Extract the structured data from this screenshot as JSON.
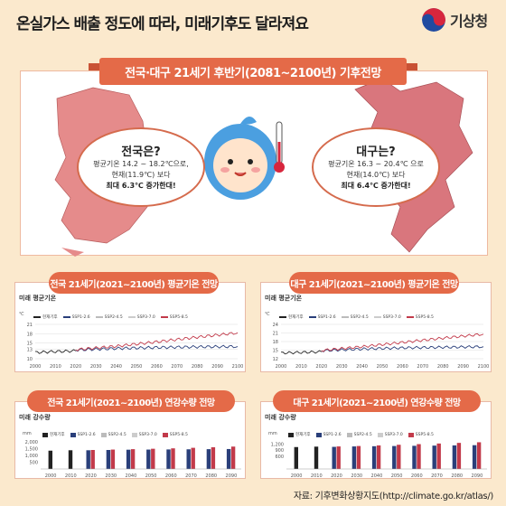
{
  "header": {
    "title": "온실가스 배출 정도에 따라, 미래기후도 달라져요",
    "logo_text": "기상청",
    "logo_icon": "taegeuk-icon"
  },
  "hero": {
    "ribbon": "전국·대구 21세기 후반기(2081~2100년) 기후전망",
    "national": {
      "title": "전국은?",
      "line1": "평균기온 14.2 ~ 18.2℃으로,",
      "line2": "현재(11.9℃) 보다",
      "line3": "최대 6.3℃ 증가한대!"
    },
    "daegu": {
      "title": "대구는?",
      "line1": "평균기온 16.3 ~ 20.4℃ 으로",
      "line2": "현재(14.0℃) 보다",
      "line3": "최대 6.4℃ 증가한대!"
    }
  },
  "panels": {
    "nat_temp": {
      "tag": "전국 21세기(2021~2100년) 평균기온 전망",
      "label": "미래 평균기온",
      "unit": "℃"
    },
    "dg_temp": {
      "tag": "대구 21세기(2021~2100년) 평균기온 전망",
      "label": "미래 평균기온",
      "unit": "℃"
    },
    "nat_rain": {
      "tag": "전국 21세기(2021~2100년) 연강수량 전망",
      "label": "미래 강수량",
      "unit": "mm"
    },
    "dg_rain": {
      "tag": "대구 21세기(2021~2100년) 연강수량 전망",
      "label": "미래 강수량",
      "unit": "mm"
    }
  },
  "legend": {
    "items": [
      "현재기후",
      "SSP1-2.6",
      "SSP2-4.5",
      "SSP3-7.0",
      "SSP5-8.5"
    ],
    "colors": [
      "#222222",
      "#2a3f7a",
      "#bbbbbb",
      "#cccccc",
      "#c23a4a"
    ]
  },
  "chart_data": [
    {
      "type": "line",
      "title": "전국 21세기(2021~2100년) 평균기온 전망",
      "x_ticks": [
        "2000",
        "2010",
        "2020",
        "2030",
        "2040",
        "2050",
        "2060",
        "2070",
        "2080",
        "2090",
        "2100"
      ],
      "y_ticks": [
        "10",
        "13",
        "15",
        "18",
        "21"
      ],
      "ylim": [
        10,
        21
      ],
      "series": [
        {
          "name": "현재기후",
          "x": [
            2000,
            2010,
            2020
          ],
          "values": [
            12.0,
            12.3,
            12.5
          ]
        },
        {
          "name": "SSP1-2.6",
          "x": [
            2020,
            2040,
            2060,
            2080,
            2100
          ],
          "values": [
            12.8,
            13.3,
            13.6,
            13.8,
            13.9
          ]
        },
        {
          "name": "SSP5-8.5",
          "x": [
            2020,
            2040,
            2060,
            2080,
            2100
          ],
          "values": [
            12.9,
            14.0,
            15.4,
            16.9,
            18.3
          ]
        }
      ]
    },
    {
      "type": "line",
      "title": "대구 21세기(2021~2100년) 평균기온 전망",
      "x_ticks": [
        "2000",
        "2010",
        "2020",
        "2030",
        "2040",
        "2050",
        "2060",
        "2070",
        "2080",
        "2090",
        "2100"
      ],
      "y_ticks": [
        "12",
        "15",
        "18",
        "21",
        "24"
      ],
      "ylim": [
        12,
        24
      ],
      "series": [
        {
          "name": "현재기후",
          "x": [
            2000,
            2010,
            2020
          ],
          "values": [
            14.0,
            14.2,
            14.4
          ]
        },
        {
          "name": "SSP1-2.6",
          "x": [
            2020,
            2040,
            2060,
            2080,
            2100
          ],
          "values": [
            14.8,
            15.4,
            15.8,
            16.0,
            16.2
          ]
        },
        {
          "name": "SSP5-8.5",
          "x": [
            2020,
            2040,
            2060,
            2080,
            2100
          ],
          "values": [
            14.9,
            16.2,
            17.7,
            19.2,
            20.6
          ]
        }
      ]
    },
    {
      "type": "bar",
      "title": "전국 21세기(2021~2100년) 연강수량 전망",
      "categories": [
        "2000",
        "2010",
        "2020",
        "2030",
        "2040",
        "2050",
        "2060",
        "2070",
        "2080",
        "2090"
      ],
      "y_ticks": [
        "500",
        "1,000",
        "1,500",
        "2,000"
      ],
      "ylim": [
        0,
        2000
      ],
      "series": [
        {
          "name": "현재기후",
          "values": [
            1350,
            1380,
            null,
            null,
            null,
            null,
            null,
            null,
            null,
            null
          ]
        },
        {
          "name": "SSP1-2.6",
          "values": [
            null,
            null,
            1380,
            1400,
            1420,
            1430,
            1440,
            1450,
            1460,
            1470
          ]
        },
        {
          "name": "SSP5-8.5",
          "values": [
            null,
            null,
            1400,
            1430,
            1460,
            1490,
            1520,
            1560,
            1600,
            1650
          ]
        }
      ]
    },
    {
      "type": "bar",
      "title": "대구 21세기(2021~2100년) 연강수량 전망",
      "categories": [
        "2000",
        "2010",
        "2020",
        "2030",
        "2040",
        "2050",
        "2060",
        "2070",
        "2080",
        "2090"
      ],
      "y_ticks": [
        "600",
        "900",
        "1,200"
      ],
      "ylim": [
        0,
        1300
      ],
      "series": [
        {
          "name": "현재기후",
          "values": [
            1050,
            1070,
            null,
            null,
            null,
            null,
            null,
            null,
            null,
            null
          ]
        },
        {
          "name": "SSP1-2.6",
          "values": [
            null,
            null,
            1060,
            1080,
            1090,
            1100,
            1110,
            1120,
            1130,
            1140
          ]
        },
        {
          "name": "SSP5-8.5",
          "values": [
            null,
            null,
            1080,
            1100,
            1130,
            1160,
            1190,
            1220,
            1250,
            1280
          ]
        }
      ]
    }
  ],
  "footer": {
    "source": "자료: 기후변화상황지도(http://climate.go.kr/atlas/)"
  }
}
